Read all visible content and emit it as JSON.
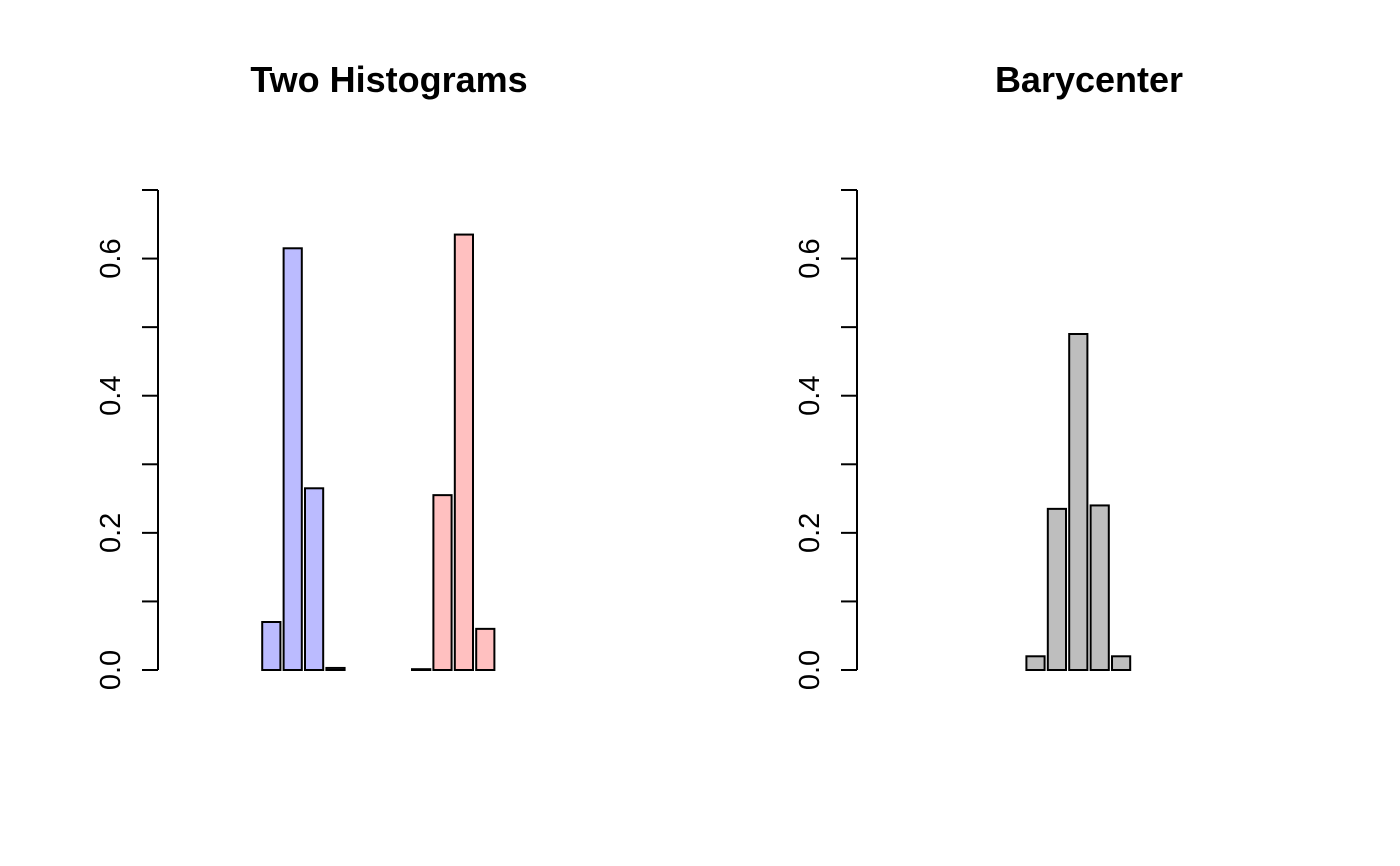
{
  "chart_data": [
    {
      "type": "bar",
      "title": "Two Histograms",
      "xlabel": "",
      "ylabel": "",
      "ylim": [
        0,
        0.7
      ],
      "yticks": [
        0.0,
        0.2,
        0.4,
        0.6
      ],
      "ytick_labels": [
        "0.0",
        "0.2",
        "0.4",
        "0.6"
      ],
      "grid": false,
      "series": [
        {
          "color": "#BBBBFF",
          "values": [
            0,
            0,
            0,
            0,
            0.07,
            0.615,
            0.265,
            0.003,
            0,
            0,
            0,
            0.001,
            0,
            0,
            0,
            0,
            0,
            0,
            0,
            0
          ]
        },
        {
          "color": "#FFC0C0",
          "values": [
            0,
            0,
            0,
            0,
            0,
            0,
            0,
            0,
            0,
            0,
            0,
            0.001,
            0.255,
            0.635,
            0.06,
            0,
            0,
            0,
            0,
            0
          ]
        }
      ]
    },
    {
      "type": "bar",
      "title": "Barycenter",
      "xlabel": "",
      "ylabel": "",
      "ylim": [
        0,
        0.7
      ],
      "yticks": [
        0.0,
        0.2,
        0.4,
        0.6
      ],
      "ytick_labels": [
        "0.0",
        "0.2",
        "0.4",
        "0.6"
      ],
      "grid": false,
      "series": [
        {
          "color": "#BEBEBE",
          "values": [
            0,
            0,
            0,
            0,
            0,
            0,
            0,
            0.02,
            0.235,
            0.49,
            0.24,
            0.02,
            0,
            0,
            0,
            0,
            0,
            0,
            0,
            0
          ]
        }
      ]
    }
  ]
}
